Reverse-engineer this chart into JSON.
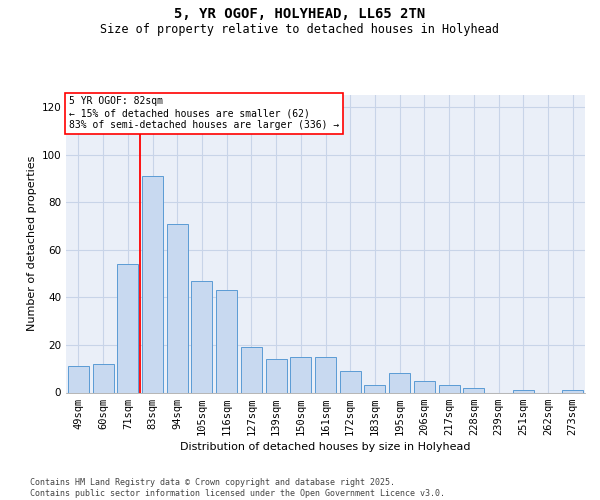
{
  "title": "5, YR OGOF, HOLYHEAD, LL65 2TN",
  "subtitle": "Size of property relative to detached houses in Holyhead",
  "xlabel": "Distribution of detached houses by size in Holyhead",
  "ylabel": "Number of detached properties",
  "footer": "Contains HM Land Registry data © Crown copyright and database right 2025.\nContains public sector information licensed under the Open Government Licence v3.0.",
  "categories": [
    "49sqm",
    "60sqm",
    "71sqm",
    "83sqm",
    "94sqm",
    "105sqm",
    "116sqm",
    "127sqm",
    "139sqm",
    "150sqm",
    "161sqm",
    "172sqm",
    "183sqm",
    "195sqm",
    "206sqm",
    "217sqm",
    "228sqm",
    "239sqm",
    "251sqm",
    "262sqm",
    "273sqm"
  ],
  "values": [
    11,
    12,
    54,
    91,
    71,
    47,
    43,
    19,
    14,
    15,
    15,
    9,
    3,
    8,
    5,
    3,
    2,
    0,
    1,
    0,
    1
  ],
  "bar_color": "#c8d9f0",
  "bar_edge_color": "#5b9bd5",
  "grid_color": "#c8d4e8",
  "background_color": "#eaeff8",
  "annotation_text": "5 YR OGOF: 82sqm\n← 15% of detached houses are smaller (62)\n83% of semi-detached houses are larger (336) →",
  "vline_x": 2.5,
  "ylim": [
    0,
    125
  ],
  "yticks": [
    0,
    20,
    40,
    60,
    80,
    100,
    120
  ],
  "title_fontsize": 10,
  "subtitle_fontsize": 8.5,
  "ylabel_fontsize": 8,
  "xlabel_fontsize": 8,
  "tick_fontsize": 7.5,
  "footer_fontsize": 6,
  "ann_fontsize": 7
}
